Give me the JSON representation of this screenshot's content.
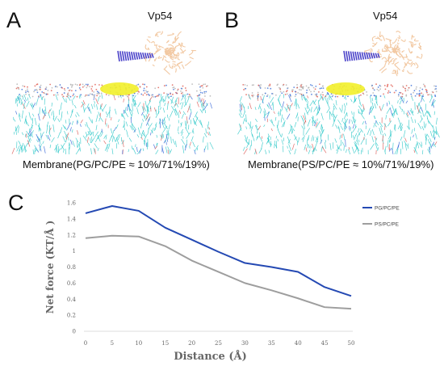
{
  "panels": {
    "a": {
      "label": "A",
      "protein_label": "Vp54",
      "caption": "Membrane(PG/PC/PE ≈ 10%/71%/19%)"
    },
    "b": {
      "label": "B",
      "protein_label": "Vp54",
      "caption": "Membrane(PS/PC/PE ≈ 10%/71%/19%)"
    },
    "c": {
      "label": "C"
    }
  },
  "colors": {
    "protein": "#f2c9a3",
    "helix": "#4b43c9",
    "lipid": "#2fc8c8",
    "headgroup_patch": "#f2f02a",
    "series_pg": "#2449b3",
    "series_ps": "#9e9e9e"
  },
  "chart_data": {
    "type": "line",
    "xlabel": "Distance (Å)",
    "ylabel": "Net force (KT/Å )",
    "x": [
      0,
      5,
      10,
      15,
      20,
      25,
      30,
      35,
      40,
      45,
      50
    ],
    "xticks": [
      "0",
      "5",
      "10",
      "15",
      "20",
      "25",
      "30",
      "35",
      "40",
      "45",
      "50"
    ],
    "yticks": [
      "0",
      "0.2",
      "0.4",
      "0.6",
      "0.8",
      "1",
      "1.2",
      "1.4",
      "1.6"
    ],
    "ylim": [
      0,
      1.6
    ],
    "xlim": [
      0,
      50
    ],
    "grid": false,
    "legend_position": "right",
    "series": [
      {
        "name": "PG/PC/PE",
        "values": [
          1.47,
          1.56,
          1.5,
          1.29,
          1.14,
          0.99,
          0.85,
          0.8,
          0.74,
          0.55,
          0.44
        ]
      },
      {
        "name": "PS/PC/PE",
        "values": [
          1.16,
          1.19,
          1.18,
          1.06,
          0.88,
          0.74,
          0.6,
          0.51,
          0.41,
          0.3,
          0.28
        ]
      }
    ]
  }
}
